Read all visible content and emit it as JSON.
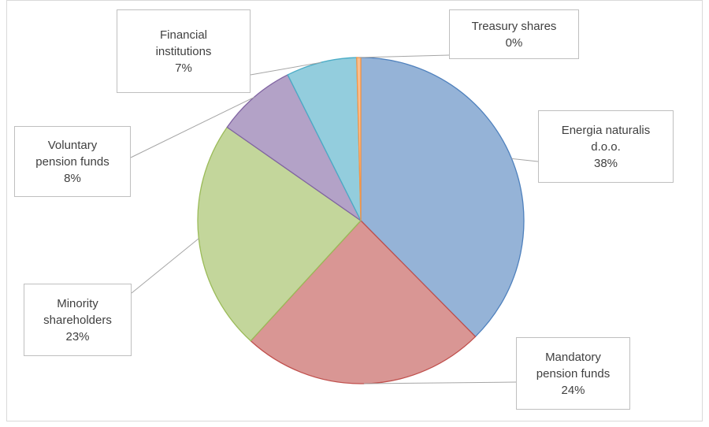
{
  "chart_data": {
    "type": "pie",
    "categories": [
      "Energia naturalis d.o.o.",
      "Mandatory pension funds",
      "Minority shareholders",
      "Voluntary pension funds",
      "Financial institutions",
      "Treasury shares"
    ],
    "values": [
      37.6,
      24.2,
      22.9,
      7.9,
      7.0,
      0.4
    ],
    "value_labels": [
      "38%",
      "24%",
      "23%",
      "8%",
      "7%",
      "0%"
    ],
    "colors": [
      "#95b3d7",
      "#d99694",
      "#c3d69b",
      "#b3a2c7",
      "#93cddd",
      "#fabf8f"
    ],
    "edge_colors": [
      "#4f81bd",
      "#c0504d",
      "#9bbb59",
      "#8064a2",
      "#4bacc6",
      "#f79646"
    ]
  }
}
